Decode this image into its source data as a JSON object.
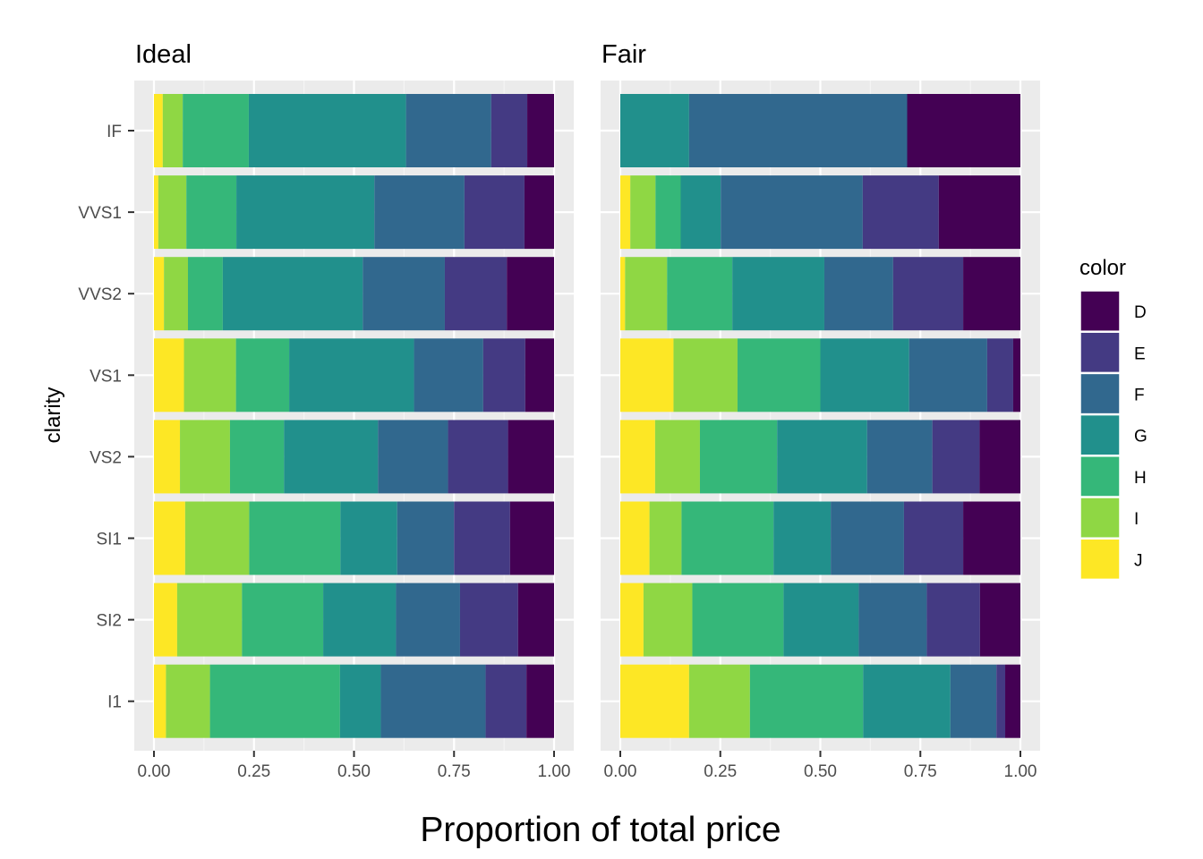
{
  "chart_data": {
    "type": "bar",
    "orientation": "horizontal",
    "stacked": "fill",
    "xlabel": "Proportion of total price",
    "ylabel": "clarity",
    "xlim": [
      0,
      1
    ],
    "x_ticks": [
      "0.00",
      "0.25",
      "0.50",
      "0.75",
      "1.00"
    ],
    "categories": [
      "IF",
      "VVS1",
      "VVS2",
      "VS1",
      "VS2",
      "SI1",
      "SI2",
      "I1"
    ],
    "legend": {
      "title": "color",
      "position": "right",
      "entries": [
        "D",
        "E",
        "F",
        "G",
        "H",
        "I",
        "J"
      ]
    },
    "colors": {
      "D": "#440154",
      "E": "#443A83",
      "F": "#31688E",
      "G": "#21908C",
      "H": "#35B779",
      "I": "#8FD744",
      "J": "#FDE725"
    },
    "panels": [
      {
        "title": "Ideal",
        "series": [
          {
            "name": "J",
            "values": [
              0.022,
              0.011,
              0.025,
              0.075,
              0.065,
              0.078,
              0.058,
              0.03
            ]
          },
          {
            "name": "I",
            "values": [
              0.05,
              0.07,
              0.06,
              0.13,
              0.125,
              0.16,
              0.162,
              0.11
            ]
          },
          {
            "name": "H",
            "values": [
              0.165,
              0.125,
              0.087,
              0.133,
              0.135,
              0.228,
              0.203,
              0.325
            ]
          },
          {
            "name": "G",
            "values": [
              0.393,
              0.345,
              0.35,
              0.312,
              0.235,
              0.142,
              0.182,
              0.102
            ]
          },
          {
            "name": "F",
            "values": [
              0.213,
              0.225,
              0.205,
              0.173,
              0.175,
              0.142,
              0.16,
              0.262
            ]
          },
          {
            "name": "E",
            "values": [
              0.09,
              0.15,
              0.155,
              0.105,
              0.15,
              0.14,
              0.145,
              0.102
            ]
          },
          {
            "name": "D",
            "values": [
              0.067,
              0.074,
              0.118,
              0.072,
              0.115,
              0.11,
              0.09,
              0.069
            ]
          }
        ]
      },
      {
        "title": "Fair",
        "series": [
          {
            "name": "J",
            "values": [
              0.0,
              0.025,
              0.012,
              0.133,
              0.087,
              0.073,
              0.058,
              0.172
            ]
          },
          {
            "name": "I",
            "values": [
              0.0,
              0.063,
              0.105,
              0.16,
              0.112,
              0.08,
              0.122,
              0.152
            ]
          },
          {
            "name": "H",
            "values": [
              0.0,
              0.063,
              0.163,
              0.207,
              0.193,
              0.23,
              0.228,
              0.283
            ]
          },
          {
            "name": "G",
            "values": [
              0.172,
              0.1,
              0.23,
              0.222,
              0.225,
              0.143,
              0.188,
              0.218
            ]
          },
          {
            "name": "F",
            "values": [
              0.545,
              0.355,
              0.172,
              0.195,
              0.163,
              0.183,
              0.17,
              0.115
            ]
          },
          {
            "name": "E",
            "values": [
              0.0,
              0.19,
              0.175,
              0.065,
              0.118,
              0.148,
              0.133,
              0.022
            ]
          },
          {
            "name": "D",
            "values": [
              0.283,
              0.204,
              0.143,
              0.018,
              0.102,
              0.143,
              0.101,
              0.038
            ]
          }
        ]
      }
    ]
  }
}
